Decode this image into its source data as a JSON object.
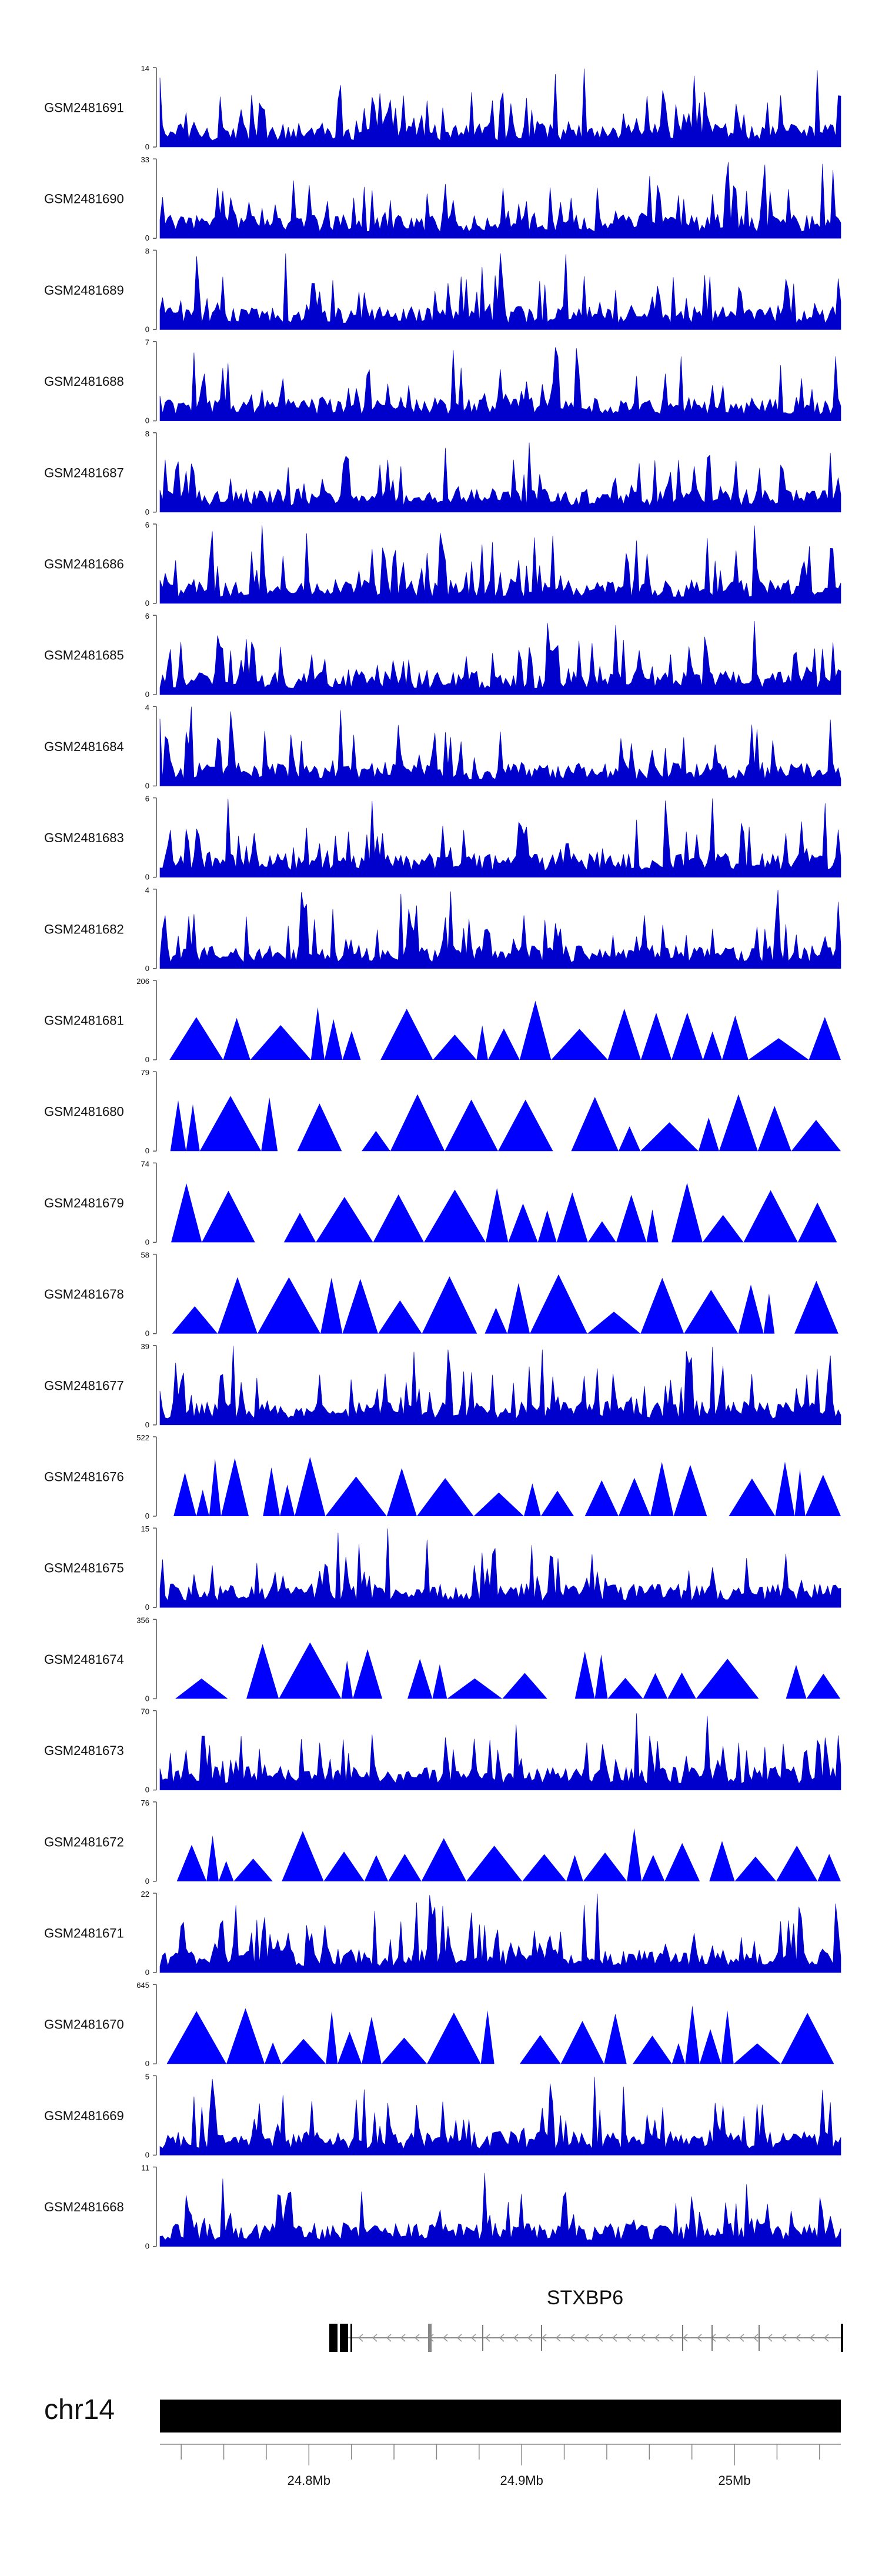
{
  "colors": {
    "track": "#0000CD",
    "triangle": "#0000FF",
    "axis": "#555555",
    "ideogram": "#000000"
  },
  "chart_data": {
    "type": "area",
    "tracks": [
      {
        "name": "GSM2481691",
        "ymax": "14",
        "style": "spiky"
      },
      {
        "name": "GSM2481690",
        "ymax": "33",
        "style": "spiky"
      },
      {
        "name": "GSM2481689",
        "ymax": "8",
        "style": "spiky"
      },
      {
        "name": "GSM2481688",
        "ymax": "7",
        "style": "spiky"
      },
      {
        "name": "GSM2481687",
        "ymax": "8",
        "style": "spiky"
      },
      {
        "name": "GSM2481686",
        "ymax": "6",
        "style": "spiky"
      },
      {
        "name": "GSM2481685",
        "ymax": "6",
        "style": "spiky"
      },
      {
        "name": "GSM2481684",
        "ymax": "4",
        "style": "spiky"
      },
      {
        "name": "GSM2481683",
        "ymax": "6",
        "style": "spiky"
      },
      {
        "name": "GSM2481682",
        "ymax": "4",
        "style": "spiky"
      },
      {
        "name": "GSM2481681",
        "ymax": "206",
        "style": "triangles"
      },
      {
        "name": "GSM2481680",
        "ymax": "79",
        "style": "triangles"
      },
      {
        "name": "GSM2481679",
        "ymax": "74",
        "style": "triangles"
      },
      {
        "name": "GSM2481678",
        "ymax": "58",
        "style": "triangles"
      },
      {
        "name": "GSM2481677",
        "ymax": "39",
        "style": "spiky"
      },
      {
        "name": "GSM2481676",
        "ymax": "522",
        "style": "triangles"
      },
      {
        "name": "GSM2481675",
        "ymax": "15",
        "style": "spiky"
      },
      {
        "name": "GSM2481674",
        "ymax": "356",
        "style": "triangles"
      },
      {
        "name": "GSM2481673",
        "ymax": "70",
        "style": "spiky"
      },
      {
        "name": "GSM2481672",
        "ymax": "76",
        "style": "triangles"
      },
      {
        "name": "GSM2481671",
        "ymax": "22",
        "style": "spiky"
      },
      {
        "name": "GSM2481670",
        "ymax": "645",
        "style": "triangles"
      },
      {
        "name": "GSM2481669",
        "ymax": "5",
        "style": "spiky"
      },
      {
        "name": "GSM2481668",
        "ymax": "11",
        "style": "spiky"
      }
    ],
    "y_min_label": "0",
    "gene": {
      "name": "STXBP6",
      "strand": "-"
    },
    "chromosome": "chr14",
    "x_axis": {
      "unit": "Mb",
      "range": [
        24.73,
        25.05
      ],
      "ticks": [
        "24.8Mb",
        "24.9Mb",
        "25Mb"
      ],
      "tick_values": [
        24.8,
        24.9,
        25.0
      ]
    }
  }
}
